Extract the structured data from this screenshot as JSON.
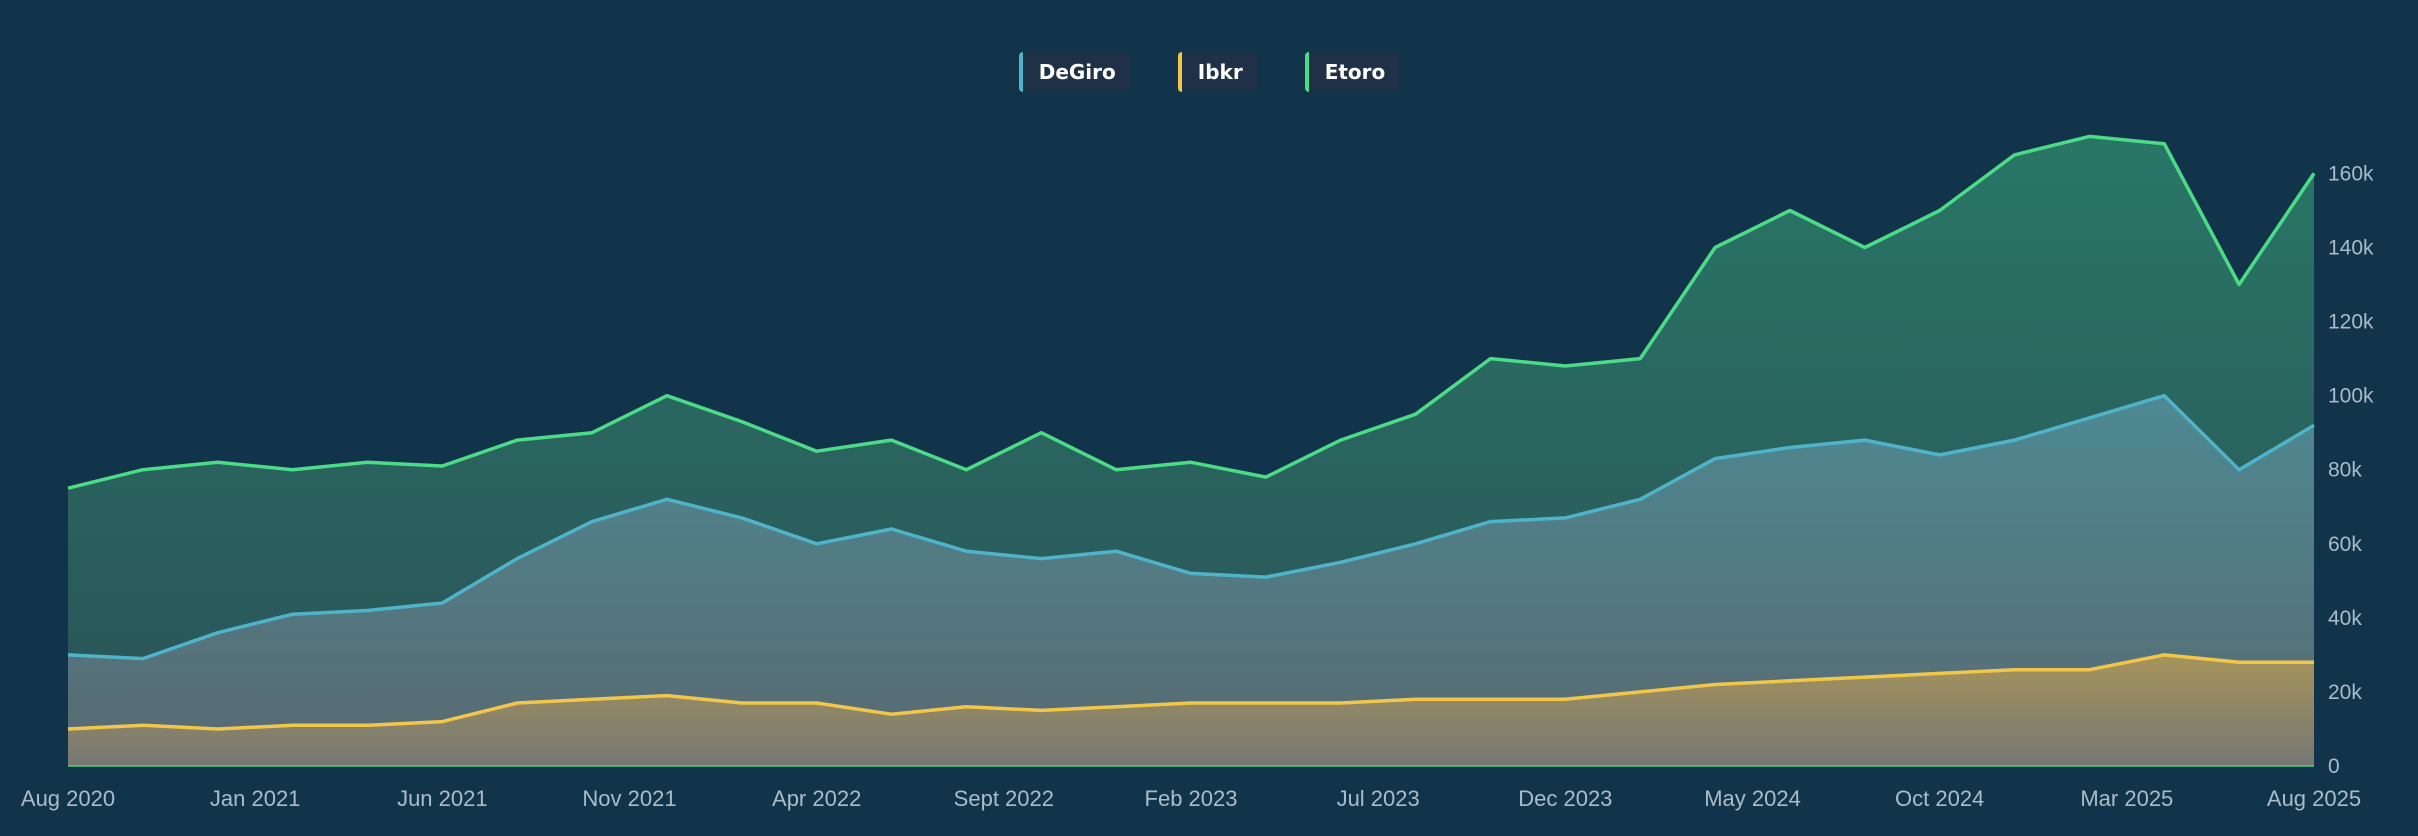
{
  "chart_data": {
    "type": "area",
    "series": [
      {
        "name": "DeGiro",
        "color": "#4fb3c9"
      },
      {
        "name": "Ibkr",
        "color": "#f2c649"
      },
      {
        "name": "Etoro",
        "color": "#4cdb86"
      }
    ],
    "x_ticks": [
      "Aug 2020",
      "Jan 2021",
      "Jun 2021",
      "Nov 2021",
      "Apr 2022",
      "Sept 2022",
      "Feb 2023",
      "Jul 2023",
      "Dec 2023",
      "May 2024",
      "Oct 2024",
      "Mar 2025",
      "Aug 2025"
    ],
    "y_ticks": [
      "0",
      "20k",
      "40k",
      "60k",
      "80k",
      "100k",
      "120k",
      "140k",
      "160k"
    ],
    "ylim": [
      0,
      172000
    ],
    "axis_position": "right",
    "legend_position": "top-center",
    "grid": false,
    "x": [
      "2020-08",
      "2020-10",
      "2020-12",
      "2021-02",
      "2021-04",
      "2021-06",
      "2021-08",
      "2021-10",
      "2021-12",
      "2022-02",
      "2022-04",
      "2022-06",
      "2022-08",
      "2022-10",
      "2022-12",
      "2023-02",
      "2023-04",
      "2023-06",
      "2023-08",
      "2023-10",
      "2023-12",
      "2024-02",
      "2024-04",
      "2024-06",
      "2024-08",
      "2024-10",
      "2024-12",
      "2025-02",
      "2025-04",
      "2025-06",
      "2025-08"
    ],
    "values": {
      "DeGiro": [
        30000,
        29000,
        36000,
        41000,
        42000,
        44000,
        56000,
        66000,
        72000,
        67000,
        60000,
        64000,
        58000,
        56000,
        58000,
        52000,
        51000,
        55000,
        60000,
        66000,
        67000,
        72000,
        83000,
        86000,
        88000,
        84000,
        88000,
        94000,
        100000,
        80000,
        92000
      ],
      "Ibkr": [
        10000,
        11000,
        10000,
        11000,
        11000,
        12000,
        17000,
        18000,
        19000,
        17000,
        17000,
        14000,
        16000,
        15000,
        16000,
        17000,
        17000,
        17000,
        18000,
        18000,
        18000,
        20000,
        22000,
        23000,
        24000,
        25000,
        26000,
        26000,
        30000,
        28000,
        28000
      ],
      "Etoro": [
        75000,
        80000,
        82000,
        80000,
        82000,
        81000,
        88000,
        90000,
        100000,
        93000,
        85000,
        88000,
        80000,
        90000,
        80000,
        82000,
        78000,
        88000,
        95000,
        110000,
        108000,
        110000,
        140000,
        150000,
        140000,
        150000,
        165000,
        170000,
        168000,
        130000,
        160000
      ]
    }
  }
}
